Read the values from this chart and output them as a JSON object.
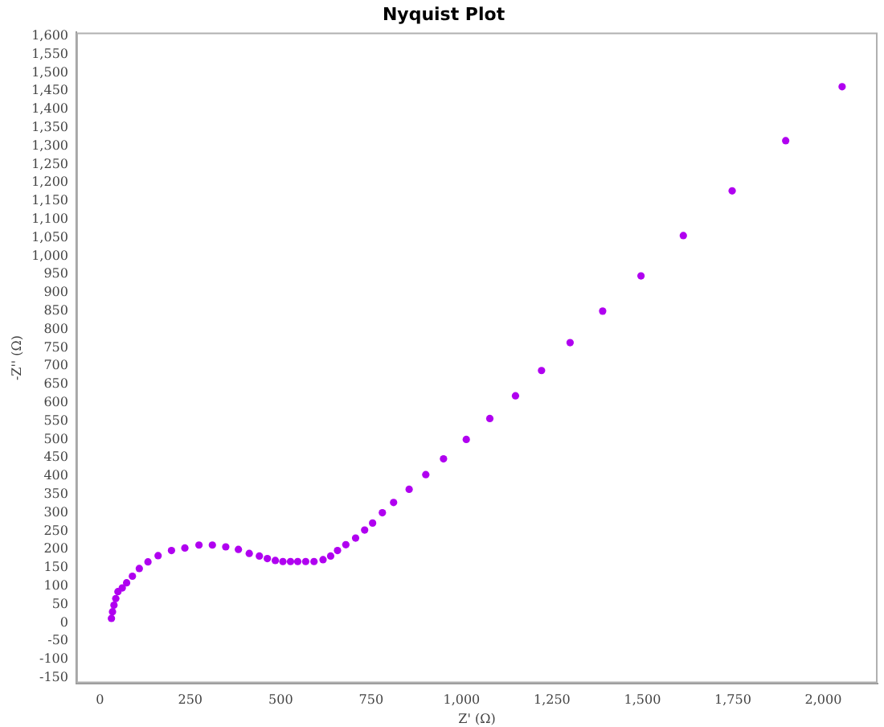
{
  "chart_data": {
    "type": "scatter",
    "title": "Nyquist Plot",
    "xlabel": "Z' (Ω)",
    "ylabel": "-Z'' (Ω)",
    "xlim": [
      -65,
      2150
    ],
    "ylim": [
      -165,
      1610
    ],
    "xticks": [
      {
        "value": 0,
        "label": "0"
      },
      {
        "value": 250,
        "label": "250"
      },
      {
        "value": 500,
        "label": "500"
      },
      {
        "value": 750,
        "label": "750"
      },
      {
        "value": 1000,
        "label": "1,000"
      },
      {
        "value": 1250,
        "label": "1,250"
      },
      {
        "value": 1500,
        "label": "1,500"
      },
      {
        "value": 1750,
        "label": "1,750"
      },
      {
        "value": 2000,
        "label": "2,000"
      }
    ],
    "yticks": [
      -150,
      -100,
      -50,
      0,
      50,
      100,
      150,
      200,
      250,
      300,
      350,
      400,
      450,
      500,
      550,
      600,
      650,
      700,
      750,
      800,
      850,
      900,
      950,
      {
        "value": 1000,
        "label": "1,000"
      },
      {
        "value": 1050,
        "label": "1,050"
      },
      {
        "value": 1100,
        "label": "1,100"
      },
      {
        "value": 1150,
        "label": "1,150"
      },
      {
        "value": 1200,
        "label": "1,200"
      },
      {
        "value": 1250,
        "label": "1,250"
      },
      {
        "value": 1300,
        "label": "1,300"
      },
      {
        "value": 1350,
        "label": "1,350"
      },
      {
        "value": 1400,
        "label": "1,400"
      },
      {
        "value": 1450,
        "label": "1,450"
      },
      {
        "value": 1500,
        "label": "1,500"
      },
      {
        "value": 1550,
        "label": "1,550"
      },
      {
        "value": 1600,
        "label": "1,600"
      }
    ],
    "grid": false,
    "legend": false,
    "marker": "circle",
    "series": [
      {
        "color": "#b000f0",
        "x": [
          32,
          35,
          39,
          44,
          50,
          62,
          74,
          90,
          109,
          133,
          161,
          198,
          235,
          274,
          311,
          348,
          383,
          413,
          441,
          463,
          485,
          506,
          527,
          547,
          569,
          592,
          617,
          638,
          657,
          680,
          707,
          732,
          754,
          781,
          812,
          855,
          901,
          950,
          1013,
          1078,
          1149,
          1221,
          1300,
          1390,
          1496,
          1613,
          1748,
          1896,
          2052
        ],
        "values": [
          12,
          30,
          48,
          66,
          85,
          95,
          109,
          127,
          148,
          166,
          183,
          197,
          204,
          212,
          212,
          207,
          200,
          189,
          182,
          175,
          170,
          167,
          167,
          167,
          167,
          167,
          172,
          182,
          197,
          213,
          231,
          253,
          272,
          300,
          328,
          364,
          404,
          447,
          500,
          557,
          619,
          688,
          764,
          850,
          946,
          1056,
          1178,
          1315,
          1462
        ]
      }
    ]
  }
}
